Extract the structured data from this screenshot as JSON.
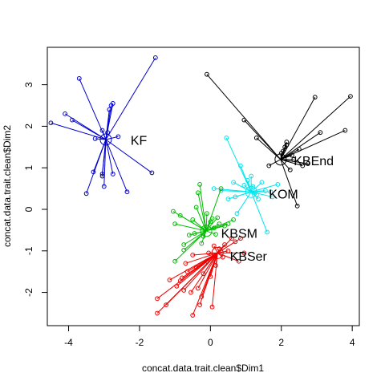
{
  "chart_data": {
    "type": "scatter",
    "title": "",
    "xlabel": "concat.data.trait.clean$Dim1",
    "ylabel": "concat.data.trait.clean$Dim2",
    "xlim": [
      -4.6,
      4.2
    ],
    "ylim": [
      -2.8,
      3.9
    ],
    "xticks": [
      -4,
      -2,
      0,
      2,
      4
    ],
    "yticks": [
      -2,
      -1,
      0,
      1,
      2,
      3
    ],
    "grid": false,
    "legend": "none",
    "series": [
      {
        "name": "KF",
        "color": "#0000CD",
        "center": [
          -2.95,
          1.68
        ],
        "points": [
          [
            -4.5,
            2.08
          ],
          [
            -4.1,
            2.3
          ],
          [
            -3.9,
            2.15
          ],
          [
            -3.7,
            3.15
          ],
          [
            -3.5,
            0.38
          ],
          [
            -3.25,
            1.7
          ],
          [
            -3.05,
            1.9
          ],
          [
            -3.05,
            0.8
          ],
          [
            -3.05,
            0.85
          ],
          [
            -2.9,
            1.85
          ],
          [
            -2.8,
            2.5
          ],
          [
            -2.75,
            2.55
          ],
          [
            -2.75,
            0.85
          ],
          [
            -2.6,
            1.75
          ],
          [
            -2.35,
            0.42
          ],
          [
            -1.65,
            0.88
          ],
          [
            -1.55,
            3.65
          ],
          [
            -3.3,
            0.9
          ],
          [
            -3.0,
            0.55
          ],
          [
            -2.85,
            2.4
          ]
        ]
      },
      {
        "name": "KBEnd",
        "color": "#000000",
        "center": [
          1.98,
          1.2
        ],
        "points": [
          [
            -0.1,
            3.25
          ],
          [
            0.95,
            2.15
          ],
          [
            1.3,
            1.72
          ],
          [
            1.65,
            1.05
          ],
          [
            2.05,
            1.4
          ],
          [
            2.1,
            1.5
          ],
          [
            2.15,
            1.55
          ],
          [
            2.15,
            1.62
          ],
          [
            2.3,
            1.3
          ],
          [
            2.35,
            1.2
          ],
          [
            2.45,
            0.08
          ],
          [
            2.5,
            1.45
          ],
          [
            2.75,
            1.1
          ],
          [
            2.95,
            2.7
          ],
          [
            3.1,
            1.85
          ],
          [
            3.8,
            1.9
          ],
          [
            3.95,
            2.72
          ],
          [
            2.0,
            1.35
          ],
          [
            2.25,
            0.95
          ],
          [
            2.6,
            1.05
          ]
        ]
      },
      {
        "name": "KOM",
        "color": "#00E5EE",
        "center": [
          1.15,
          0.42
        ],
        "points": [
          [
            0.1,
            0.5
          ],
          [
            0.3,
            0.45
          ],
          [
            0.45,
            1.72
          ],
          [
            0.5,
            0.25
          ],
          [
            0.7,
            0.3
          ],
          [
            0.85,
            1.05
          ],
          [
            0.95,
            0.58
          ],
          [
            1.05,
            0.7
          ],
          [
            1.15,
            0.8
          ],
          [
            1.2,
            0.55
          ],
          [
            1.3,
            0.35
          ],
          [
            1.35,
            0.25
          ],
          [
            1.45,
            0.65
          ],
          [
            1.55,
            0.45
          ],
          [
            1.6,
            -0.55
          ],
          [
            1.7,
            0.42
          ],
          [
            1.75,
            0.3
          ],
          [
            0.75,
            -0.1
          ],
          [
            0.65,
            0.65
          ],
          [
            1.9,
            0.6
          ]
        ]
      },
      {
        "name": "KBSM",
        "color": "#00BB00",
        "center": [
          -0.12,
          -0.52
        ],
        "points": [
          [
            -1.05,
            -0.05
          ],
          [
            -1.0,
            -0.35
          ],
          [
            -1.0,
            -1.25
          ],
          [
            -0.85,
            -0.15
          ],
          [
            -0.75,
            -0.85
          ],
          [
            -0.75,
            -0.98
          ],
          [
            -0.6,
            -0.62
          ],
          [
            -0.5,
            -0.25
          ],
          [
            -0.45,
            -0.58
          ],
          [
            -0.4,
            0.05
          ],
          [
            -0.35,
            0.4
          ],
          [
            -0.3,
            0.6
          ],
          [
            -0.25,
            -0.82
          ],
          [
            -0.15,
            -0.48
          ],
          [
            -0.1,
            -0.1
          ],
          [
            0.0,
            -0.3
          ],
          [
            0.05,
            -0.22
          ],
          [
            0.1,
            -0.45
          ],
          [
            0.15,
            -0.6
          ],
          [
            0.2,
            -0.2
          ],
          [
            0.25,
            -0.35
          ],
          [
            0.3,
            0.5
          ],
          [
            0.4,
            -0.4
          ],
          [
            0.5,
            -0.35
          ],
          [
            0.65,
            -0.25
          ],
          [
            -0.2,
            -0.65
          ]
        ]
      },
      {
        "name": "KBSer",
        "color": "#EE0000",
        "center": [
          0.2,
          -1.05
        ],
        "points": [
          [
            -1.5,
            -2.5
          ],
          [
            -1.5,
            -2.15
          ],
          [
            -1.25,
            -2.3
          ],
          [
            -1.15,
            -1.7
          ],
          [
            -0.95,
            -1.85
          ],
          [
            -0.85,
            -1.72
          ],
          [
            -0.8,
            -1.65
          ],
          [
            -0.75,
            -1.95
          ],
          [
            -0.7,
            -1.3
          ],
          [
            -0.65,
            -1.5
          ],
          [
            -0.55,
            -2.0
          ],
          [
            -0.5,
            -1.1
          ],
          [
            -0.5,
            -2.55
          ],
          [
            -0.4,
            -1.4
          ],
          [
            -0.35,
            -1.9
          ],
          [
            -0.25,
            -2.1
          ],
          [
            -0.2,
            -1.55
          ],
          [
            -0.1,
            -1.25
          ],
          [
            -0.05,
            -1.05
          ],
          [
            0.0,
            -1.62
          ],
          [
            0.05,
            -2.35
          ],
          [
            0.1,
            -0.88
          ],
          [
            0.15,
            -1.35
          ],
          [
            0.25,
            -0.95
          ],
          [
            0.35,
            -1.15
          ],
          [
            0.4,
            -0.85
          ],
          [
            0.5,
            -1.0
          ],
          [
            0.6,
            -0.7
          ],
          [
            0.7,
            -0.78
          ],
          [
            0.8,
            -1.25
          ],
          [
            0.85,
            -0.7
          ],
          [
            0.95,
            -1.05
          ],
          [
            -0.3,
            -2.3
          ]
        ]
      }
    ],
    "labels": [
      {
        "text": "KF",
        "x": -2.25,
        "y": 1.64
      },
      {
        "text": "KBEnd",
        "x": 2.35,
        "y": 1.14
      },
      {
        "text": "KOM",
        "x": 1.65,
        "y": 0.34
      },
      {
        "text": "KBSM",
        "x": 0.3,
        "y": -0.6
      },
      {
        "text": "KBSer",
        "x": 0.55,
        "y": -1.15
      }
    ]
  }
}
